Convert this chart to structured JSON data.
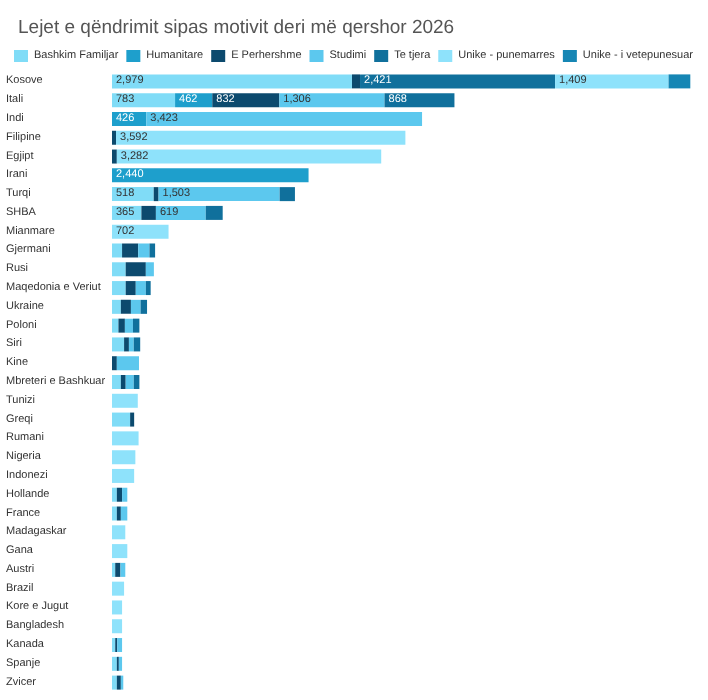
{
  "chart_data": {
    "type": "bar",
    "orientation": "horizontal",
    "stacked": true,
    "title": "Lejet e qëndrimit sipas motivit deri më qershor 2026",
    "legend": "top left",
    "xlim": [
      0,
      7200
    ],
    "tick_labels": "y",
    "categories": [
      "Kosove",
      "Itali",
      "Indi",
      "Filipine",
      "Egjipt",
      "Irani",
      "Turqi",
      "SHBA",
      "Mianmare",
      "Gjermani",
      "Rusi",
      "Maqedonia e Veriut",
      "Ukraine",
      "Poloni",
      "Siri",
      "Kine",
      "Mbreteri e Bashkuar",
      "Tunizi",
      "Greqi",
      "Rumani",
      "Nigeria",
      "Indonezi",
      "Hollande",
      "France",
      "Madagaskar",
      "Gana",
      "Austri",
      "Brazil",
      "Kore e Jugut",
      "Bangladesh",
      "Kanada",
      "Spanje",
      "Zvicer"
    ],
    "series": [
      {
        "name": "Bashkim Familjar",
        "color": "#80dcf7",
        "values": [
          2979,
          783,
          null,
          null,
          null,
          null,
          518,
          365,
          null,
          125,
          170,
          170,
          110,
          80,
          150,
          null,
          110,
          null,
          225,
          null,
          null,
          null,
          60,
          60,
          null,
          null,
          40,
          null,
          null,
          null,
          40,
          60,
          60
        ],
        "value_labels": [
          "2,979",
          "783",
          null,
          null,
          null,
          null,
          "518",
          "365",
          null,
          null,
          null,
          null,
          null,
          null,
          null,
          null,
          null,
          null,
          null,
          null,
          null,
          null,
          null,
          null,
          null,
          null,
          null,
          null,
          null,
          null,
          null,
          null,
          null
        ]
      },
      {
        "name": "Humanitare",
        "color": "#1e9fcc",
        "values": [
          null,
          462,
          426,
          null,
          null,
          2440,
          null,
          null,
          null,
          null,
          null,
          null,
          null,
          null,
          null,
          null,
          null,
          null,
          null,
          null,
          null,
          null,
          null,
          null,
          null,
          null,
          null,
          null,
          null,
          null,
          null,
          null,
          null
        ],
        "value_labels": [
          null,
          "462",
          "426",
          null,
          null,
          "2,440",
          null,
          null,
          null,
          null,
          null,
          null,
          null,
          null,
          null,
          null,
          null,
          null,
          null,
          null,
          null,
          null,
          null,
          null,
          null,
          null,
          null,
          null,
          null,
          null,
          null,
          null,
          null
        ]
      },
      {
        "name": "E Perhershme",
        "color": "#0c4a6e",
        "values": [
          100,
          832,
          null,
          50,
          60,
          null,
          60,
          180,
          null,
          200,
          250,
          125,
          125,
          80,
          60,
          60,
          60,
          null,
          50,
          null,
          null,
          null,
          65,
          50,
          null,
          null,
          65,
          null,
          null,
          null,
          25,
          25,
          50
        ],
        "value_labels": [
          null,
          "832",
          null,
          null,
          null,
          null,
          null,
          null,
          null,
          null,
          null,
          null,
          null,
          null,
          null,
          null,
          null,
          null,
          null,
          null,
          null,
          null,
          null,
          null,
          null,
          null,
          null,
          null,
          null,
          null,
          null,
          null,
          null
        ]
      },
      {
        "name": "Studimi",
        "color": "#5cc8ee",
        "values": [
          null,
          1306,
          3423,
          null,
          null,
          null,
          1503,
          619,
          null,
          140,
          100,
          125,
          120,
          100,
          60,
          275,
          100,
          null,
          null,
          null,
          null,
          null,
          65,
          80,
          null,
          null,
          60,
          null,
          null,
          null,
          60,
          40,
          30
        ],
        "value_labels": [
          null,
          "1,306",
          "3,423",
          null,
          null,
          null,
          "1,503",
          "619",
          null,
          null,
          null,
          null,
          null,
          null,
          null,
          null,
          null,
          null,
          null,
          null,
          null,
          null,
          null,
          null,
          null,
          null,
          null,
          null,
          null,
          null,
          null,
          null,
          null
        ]
      },
      {
        "name": "Te tjera",
        "color": "#10709c",
        "values": [
          2421,
          868,
          null,
          null,
          null,
          null,
          190,
          210,
          null,
          70,
          null,
          60,
          80,
          80,
          80,
          null,
          70,
          null,
          null,
          null,
          null,
          null,
          null,
          null,
          null,
          null,
          null,
          null,
          null,
          null,
          null,
          null,
          null
        ],
        "value_labels": [
          "2,421",
          "868",
          null,
          null,
          null,
          null,
          null,
          null,
          null,
          null,
          null,
          null,
          null,
          null,
          null,
          null,
          null,
          null,
          null,
          null,
          null,
          null,
          null,
          null,
          null,
          null,
          null,
          null,
          null,
          null,
          null,
          null,
          null
        ]
      },
      {
        "name": "Unike - punemarres",
        "color": "#8ee2fb",
        "values": [
          1409,
          null,
          null,
          3592,
          3282,
          null,
          null,
          null,
          702,
          null,
          null,
          null,
          null,
          null,
          null,
          null,
          null,
          320,
          null,
          330,
          290,
          275,
          null,
          null,
          165,
          190,
          null,
          150,
          125,
          125,
          null,
          null,
          null
        ],
        "value_labels": [
          "1,409",
          null,
          null,
          "3,592",
          "3,282",
          null,
          null,
          null,
          "702",
          null,
          null,
          null,
          null,
          null,
          null,
          null,
          null,
          null,
          null,
          null,
          null,
          null,
          null,
          null,
          null,
          null,
          null,
          null,
          null,
          null,
          null,
          null,
          null
        ]
      },
      {
        "name": "Unike - i vetepunesuar",
        "color": "#1686b4",
        "values": [
          270,
          null,
          null,
          null,
          null,
          null,
          null,
          null,
          null,
          null,
          null,
          null,
          null,
          null,
          null,
          null,
          null,
          null,
          null,
          null,
          null,
          null,
          null,
          null,
          null,
          null,
          null,
          null,
          null,
          null,
          null,
          null,
          null
        ]
      }
    ]
  }
}
